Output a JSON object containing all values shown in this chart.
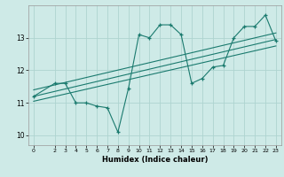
{
  "xlabel": "Humidex (Indice chaleur)",
  "ylabel": "",
  "bg_color": "#ceeae7",
  "line_color": "#1a7a6e",
  "grid_color": "#aed4d0",
  "xlim": [
    -0.5,
    23.5
  ],
  "ylim": [
    9.7,
    14.0
  ],
  "yticks": [
    10,
    11,
    12,
    13
  ],
  "xticks": [
    0,
    2,
    3,
    4,
    5,
    6,
    7,
    8,
    9,
    10,
    11,
    12,
    13,
    14,
    15,
    16,
    17,
    18,
    19,
    20,
    21,
    22,
    23
  ],
  "main_x": [
    0,
    2,
    3,
    4,
    5,
    6,
    7,
    8,
    9,
    10,
    11,
    12,
    13,
    14,
    15,
    16,
    17,
    18,
    19,
    20,
    21,
    22,
    23
  ],
  "main_y": [
    11.2,
    11.6,
    11.6,
    11.0,
    11.0,
    10.9,
    10.85,
    10.1,
    11.45,
    13.1,
    13.0,
    13.4,
    13.4,
    13.1,
    11.6,
    11.75,
    12.1,
    12.15,
    13.0,
    13.35,
    13.35,
    13.7,
    12.9
  ],
  "trend1_x": [
    0,
    23
  ],
  "trend1_y": [
    11.05,
    12.75
  ],
  "trend2_x": [
    0,
    23
  ],
  "trend2_y": [
    11.2,
    12.95
  ],
  "trend3_x": [
    0,
    23
  ],
  "trend3_y": [
    11.4,
    13.15
  ]
}
